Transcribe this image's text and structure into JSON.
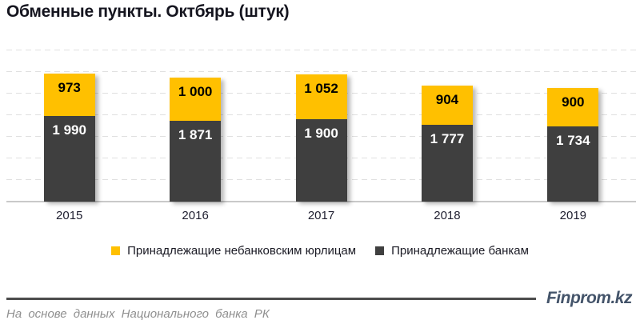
{
  "title": "Обменные пункты. Октбярь (штук)",
  "chart_data": {
    "type": "bar",
    "stacked": true,
    "title": "Обменные пункты. Октбярь (штук)",
    "categories": [
      "2015",
      "2016",
      "2017",
      "2018",
      "2019"
    ],
    "series": [
      {
        "name": "Принадлежащие небанковским юрлицам",
        "position": "top",
        "color": "#FFC000",
        "label_color": "#000000",
        "values": [
          973,
          1000,
          1052,
          904,
          900
        ],
        "labels": [
          "973",
          "1 000",
          "1 052",
          "904",
          "900"
        ]
      },
      {
        "name": "Принадлежащие банкам",
        "position": "bottom",
        "color": "#3F3F3F",
        "label_color": "#FFFFFF",
        "values": [
          1990,
          1871,
          1900,
          1777,
          1734
        ],
        "labels": [
          "1 990",
          "1 871",
          "1 900",
          "1 777",
          "1 734"
        ]
      }
    ],
    "xlabel": "",
    "ylabel": "",
    "ylim": [
      0,
      3500
    ],
    "grid_step": 500,
    "grid": true,
    "grid_style": "dashed",
    "legend_position": "bottom",
    "colors": {
      "grid": "#e0e0e0",
      "axis_line": "#c9c9c9",
      "tick_text": "#1f1f30",
      "title_text": "#15151f"
    }
  },
  "footer": {
    "source_note": "На основе данных Национального банка РК",
    "brand": "Finprom.kz",
    "brand_color": "#44546a"
  }
}
